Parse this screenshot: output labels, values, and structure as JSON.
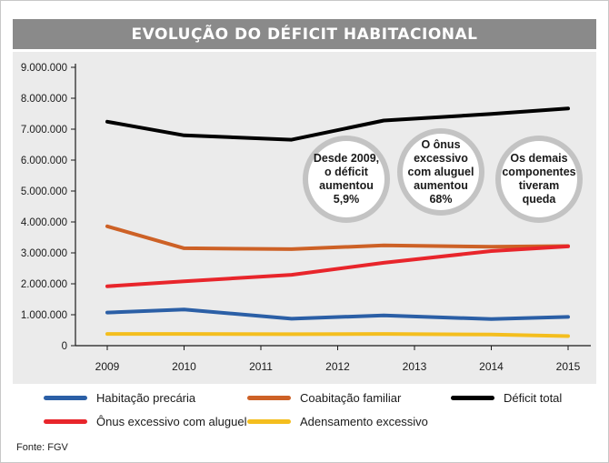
{
  "header": {
    "title": "EVOLUÇÃO DO DÉFICIT HABITACIONAL"
  },
  "source": "Fonte: FGV",
  "bubbles": [
    {
      "text": "Desde 2009,\no déficit\naumentou\n5,9%"
    },
    {
      "text": "O ônus\nexcessivo\ncom aluguel\naumentou\n68%"
    },
    {
      "text": "Os demais\ncomponentes\ntiveram\nqueda"
    }
  ],
  "chart_data": {
    "type": "line",
    "x": [
      2009,
      2010,
      2011,
      2012,
      2013,
      2014,
      2015
    ],
    "x_tick_labels": [
      "2009",
      "2010",
      "2011",
      "2012",
      "2013",
      "2014",
      "2015"
    ],
    "y_tick_labels": [
      "0",
      "1.000.000",
      "2.000.000",
      "3.000.000",
      "4.000.000",
      "5.000.000",
      "6.000.000",
      "7.000.000",
      "8.000.000",
      "9.000.000"
    ],
    "ylim": [
      0,
      9000000
    ],
    "grid": false,
    "legend_position": "bottom",
    "series": [
      {
        "name": "Habitação precária",
        "color": "#2b5fa6",
        "points": [
          [
            2009,
            1070000
          ],
          [
            2010,
            1170000
          ],
          [
            2011.4,
            870000
          ],
          [
            2012.6,
            980000
          ],
          [
            2014,
            860000
          ],
          [
            2015,
            930000
          ]
        ]
      },
      {
        "name": "Coabitação familiar",
        "color": "#cd6126",
        "points": [
          [
            2009,
            3860000
          ],
          [
            2010,
            3150000
          ],
          [
            2011.4,
            3120000
          ],
          [
            2012.6,
            3240000
          ],
          [
            2014,
            3200000
          ],
          [
            2015,
            3220000
          ]
        ]
      },
      {
        "name": "Déficit total",
        "color": "#000000",
        "points": [
          [
            2009,
            7240000
          ],
          [
            2010,
            6800000
          ],
          [
            2011.4,
            6660000
          ],
          [
            2012.6,
            7280000
          ],
          [
            2014,
            7490000
          ],
          [
            2015,
            7670000
          ]
        ]
      },
      {
        "name": "Ônus excessivo com aluguel",
        "color": "#e8252b",
        "points": [
          [
            2009,
            1920000
          ],
          [
            2010,
            2080000
          ],
          [
            2011.4,
            2290000
          ],
          [
            2012.6,
            2680000
          ],
          [
            2014,
            3060000
          ],
          [
            2015,
            3210000
          ]
        ]
      },
      {
        "name": "Adensamento excessivo",
        "color": "#f4be1e",
        "points": [
          [
            2009,
            380000
          ],
          [
            2010,
            380000
          ],
          [
            2011.4,
            370000
          ],
          [
            2012.6,
            380000
          ],
          [
            2014,
            360000
          ],
          [
            2015,
            310000
          ]
        ]
      }
    ]
  }
}
